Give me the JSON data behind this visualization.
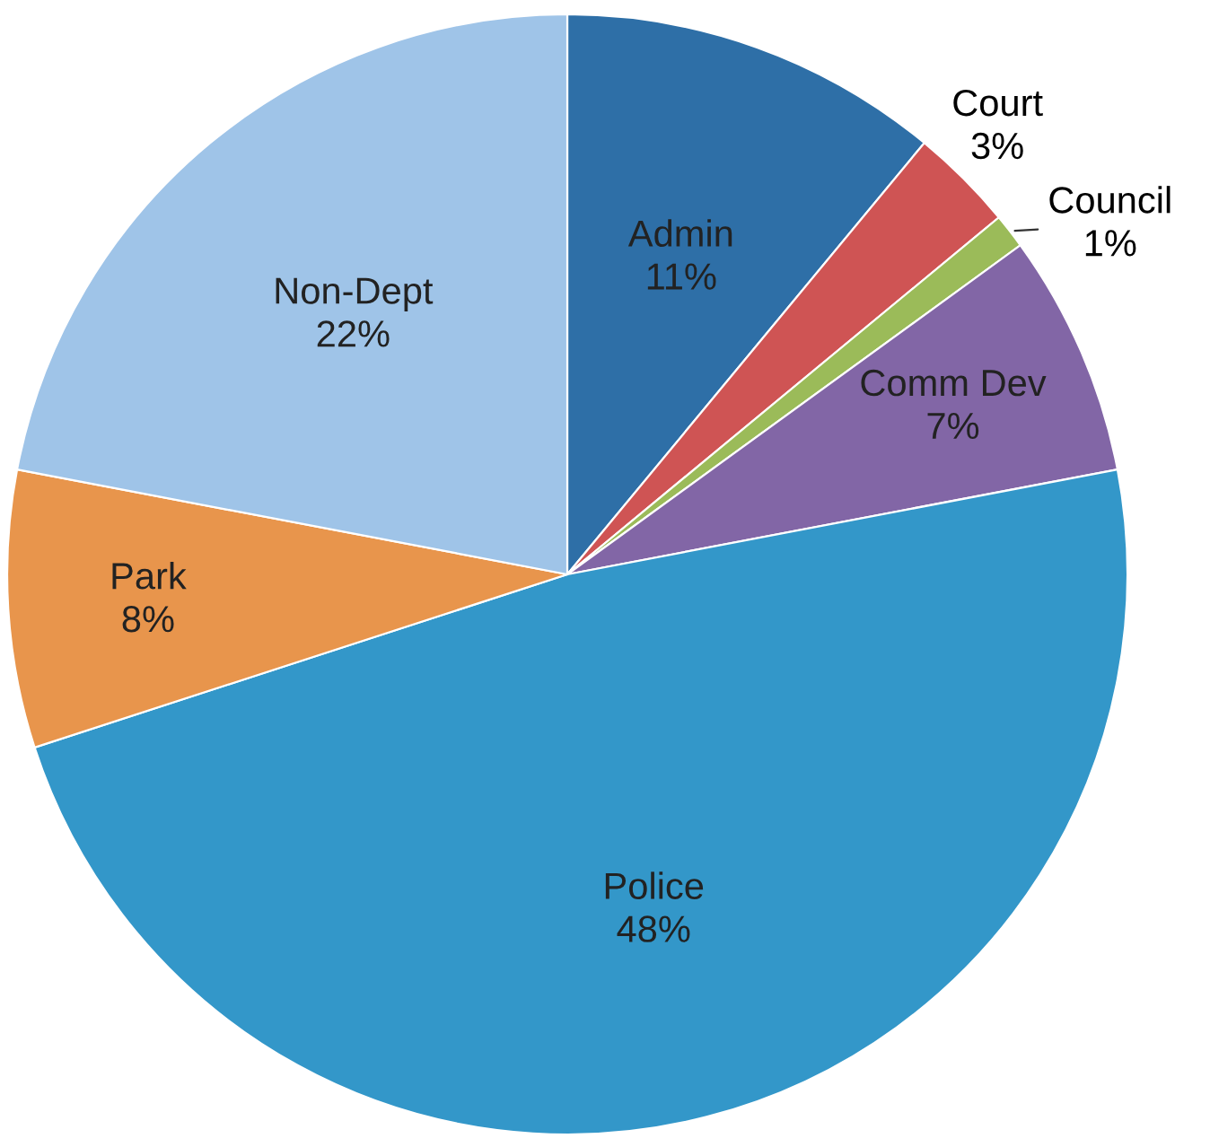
{
  "chart_data": {
    "type": "pie",
    "categories": [
      "Admin",
      "Court",
      "Council",
      "Comm Dev",
      "Police",
      "Park",
      "Non-Dept"
    ],
    "values": [
      11,
      3,
      1,
      7,
      48,
      8,
      22
    ],
    "value_labels": [
      "11%",
      "3%",
      "1%",
      "7%",
      "48%",
      "8%",
      "22%"
    ],
    "colors": [
      "#2e6fa7",
      "#cf5454",
      "#9bbb59",
      "#8266a6",
      "#3397c9",
      "#e8954c",
      "#9fc4e8"
    ],
    "legend": false
  }
}
